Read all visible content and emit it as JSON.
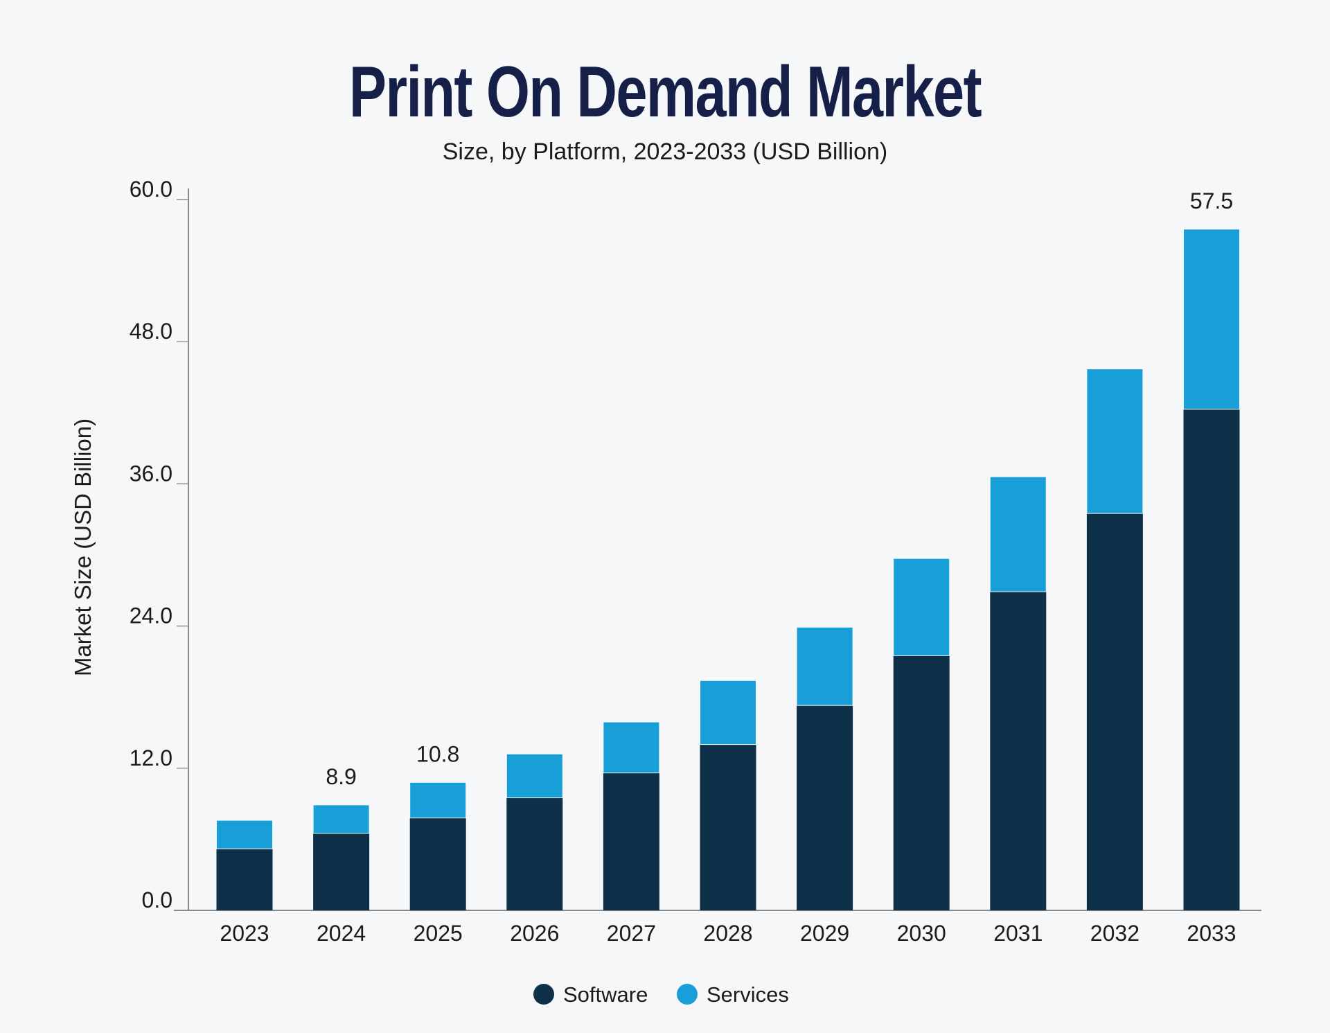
{
  "chart_data": {
    "type": "bar",
    "stacked": true,
    "title": "Print On Demand Market",
    "subtitle": "Size, by Platform, 2023-2033 (USD Billion)",
    "xlabel": "",
    "ylabel": "Market Size (USD Billion)",
    "ylim": [
      0,
      60
    ],
    "yticks": [
      "0.0",
      "12.0",
      "24.0",
      "36.0",
      "48.0",
      "60.0"
    ],
    "ytick_values": [
      0,
      12,
      24,
      36,
      48,
      60
    ],
    "grid": false,
    "legend_position": "bottom",
    "categories": [
      "2023",
      "2024",
      "2025",
      "2026",
      "2027",
      "2028",
      "2029",
      "2030",
      "2031",
      "2032",
      "2033"
    ],
    "series": [
      {
        "name": "Software",
        "color": "#0f3049",
        "values": [
          5.2,
          6.5,
          7.8,
          9.5,
          11.6,
          14.0,
          17.3,
          21.5,
          26.9,
          33.5,
          42.3
        ]
      },
      {
        "name": "Services",
        "color": "#189fd8",
        "values": [
          2.4,
          2.4,
          3.0,
          3.7,
          4.3,
          5.4,
          6.6,
          8.2,
          9.7,
          12.2,
          15.2
        ]
      }
    ],
    "data_labels": [
      {
        "category": "2024",
        "text": "8.9"
      },
      {
        "category": "2025",
        "text": "10.8"
      },
      {
        "category": "2033",
        "text": "57.5"
      }
    ]
  }
}
